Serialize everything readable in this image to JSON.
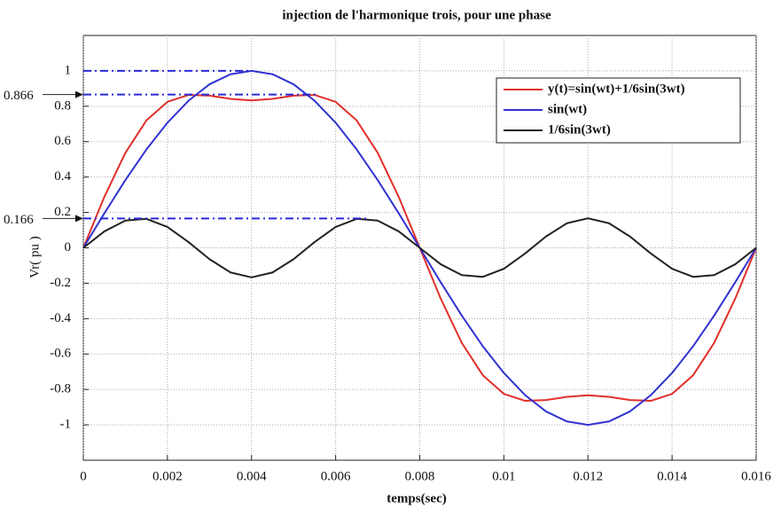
{
  "chart_data": {
    "type": "line",
    "title": "injection de l'harmonique trois, pour une phase",
    "xlabel": "temps(sec)",
    "ylabel": "Vr( pu )",
    "x": [
      0,
      0.0005,
      0.001,
      0.0015,
      0.002,
      0.0025,
      0.003,
      0.0035,
      0.004,
      0.0045,
      0.005,
      0.0055,
      0.006,
      0.0065,
      0.007,
      0.0075,
      0.008,
      0.0085,
      0.009,
      0.0095,
      0.01,
      0.0105,
      0.011,
      0.0115,
      0.012,
      0.0125,
      0.013,
      0.0135,
      0.014,
      0.0145,
      0.015,
      0.0155,
      0.016
    ],
    "series": [
      {
        "name": "y(t)=sin(wt)+1/6sin(3wt)",
        "color": "#e0302a",
        "values": [
          0,
          0.288,
          0.537,
          0.72,
          0.825,
          0.864,
          0.86,
          0.842,
          0.833,
          0.842,
          0.86,
          0.864,
          0.825,
          0.72,
          0.537,
          0.288,
          0,
          -0.288,
          -0.537,
          -0.72,
          -0.825,
          -0.864,
          -0.86,
          -0.842,
          -0.833,
          -0.842,
          -0.86,
          -0.864,
          -0.825,
          -0.72,
          -0.537,
          -0.288,
          0
        ]
      },
      {
        "name": "sin(wt)",
        "color": "#3232d2",
        "values": [
          0,
          0.195,
          0.383,
          0.556,
          0.707,
          0.831,
          0.924,
          0.981,
          1,
          0.981,
          0.924,
          0.831,
          0.707,
          0.556,
          0.383,
          0.195,
          0,
          -0.195,
          -0.383,
          -0.556,
          -0.707,
          -0.831,
          -0.924,
          -0.981,
          -1,
          -0.981,
          -0.924,
          -0.831,
          -0.707,
          -0.556,
          -0.383,
          -0.195,
          0
        ]
      },
      {
        "name": "1/6sin(3wt)",
        "color": "#222222",
        "values": [
          0,
          0.093,
          0.154,
          0.164,
          0.118,
          0.033,
          -0.064,
          -0.139,
          -0.167,
          -0.139,
          -0.064,
          0.033,
          0.118,
          0.164,
          0.154,
          0.093,
          0,
          -0.093,
          -0.154,
          -0.164,
          -0.118,
          -0.033,
          0.064,
          0.139,
          0.167,
          0.139,
          0.064,
          -0.033,
          -0.118,
          -0.164,
          -0.154,
          -0.093,
          0
        ]
      }
    ],
    "xlim": [
      0,
      0.016
    ],
    "xticks": [
      0,
      0.002,
      0.004,
      0.006,
      0.008,
      0.01,
      0.012,
      0.014,
      0.016
    ],
    "ylim": [
      -1.2,
      1.2
    ],
    "yticks": [
      -1,
      -0.8,
      -0.6,
      -0.4,
      -0.2,
      0,
      0.2,
      0.4,
      0.6,
      0.8,
      1
    ],
    "grid": true,
    "legend": "upper right",
    "reference_lines": [
      {
        "y": 1,
        "x_end": 0.004
      },
      {
        "y": 0.866,
        "x_end": 0.0056,
        "label": 0.866
      },
      {
        "y": 0.166,
        "x_end": 0.0068,
        "label": 0.166
      }
    ]
  }
}
